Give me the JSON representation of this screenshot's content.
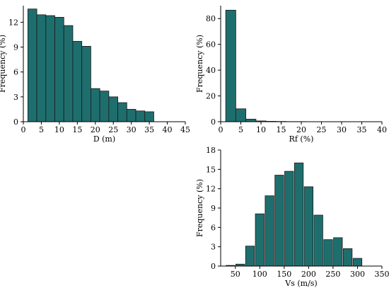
{
  "theme": {
    "bar_fill": "#1f6e6e",
    "bar_stroke": "#1a1a1a",
    "axis_color": "#000000",
    "background": "#ffffff"
  },
  "chart_data": [
    {
      "id": "d-hist",
      "type": "bar",
      "xlabel": "D (m)",
      "ylabel": "Frequency (%)",
      "xlim": [
        0,
        45
      ],
      "ylim": [
        0,
        14
      ],
      "xticks": [
        0,
        5,
        10,
        15,
        20,
        25,
        30,
        35,
        40,
        45
      ],
      "yticks": [
        0,
        3,
        6,
        9,
        12
      ],
      "bar_width": 2.5,
      "x": [
        2.5,
        5,
        7.5,
        10,
        12.5,
        15,
        17.5,
        20,
        22.5,
        25,
        27.5,
        30,
        32.5,
        35,
        37.5,
        40
      ],
      "values": [
        13.6,
        12.9,
        12.8,
        12.6,
        11.6,
        9.7,
        9.1,
        4.0,
        3.7,
        3.0,
        2.3,
        1.5,
        1.3,
        1.2,
        0,
        0
      ],
      "grid": false
    },
    {
      "id": "rf-hist",
      "type": "bar",
      "xlabel": "Rf (%)",
      "ylabel": "Frequency (%)",
      "xlim": [
        0,
        40
      ],
      "ylim": [
        0,
        90
      ],
      "xticks": [
        0,
        5,
        10,
        15,
        20,
        25,
        30,
        35,
        40
      ],
      "yticks": [
        0,
        20,
        40,
        60,
        80
      ],
      "bar_width": 2.5,
      "x": [
        2.5,
        5,
        7.5,
        10,
        12.5,
        15,
        17.5,
        20,
        22.5,
        25,
        27.5,
        30,
        32.5,
        35,
        37.5
      ],
      "values": [
        86.5,
        10.0,
        2.0,
        0.6,
        0.3,
        0.2,
        0.1,
        0.1,
        0.05,
        0.05,
        0.05,
        0.05,
        0.05,
        0.05,
        0.05
      ],
      "grid": false
    },
    {
      "id": "vs-hist",
      "type": "bar",
      "xlabel": "Vs (m/s)",
      "ylabel": "Frequency (%)",
      "xlim": [
        20,
        350
      ],
      "ylim": [
        0,
        18
      ],
      "xticks": [
        50,
        100,
        150,
        200,
        250,
        300,
        350
      ],
      "yticks": [
        0,
        3,
        6,
        9,
        12,
        15,
        18
      ],
      "bar_width": 18,
      "x": [
        40,
        60,
        80,
        100,
        120,
        140,
        160,
        180,
        200,
        220,
        240,
        260,
        280,
        300,
        320
      ],
      "values": [
        0.1,
        0.3,
        3.1,
        8.1,
        10.9,
        14.1,
        14.7,
        16.0,
        12.3,
        7.9,
        4.1,
        4.4,
        2.7,
        1.2,
        0
      ],
      "grid": false
    }
  ]
}
